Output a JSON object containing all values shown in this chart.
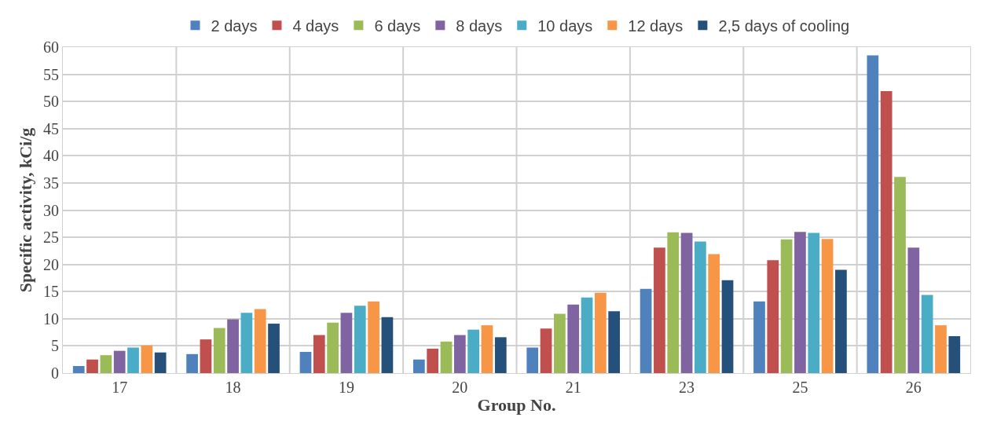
{
  "chart_data": {
    "type": "bar",
    "xlabel": "Group No.",
    "ylabel": "Specific activity, kCi/g",
    "categories": [
      "17",
      "18",
      "19",
      "20",
      "21",
      "23",
      "25",
      "26"
    ],
    "series": [
      {
        "name": "2 days",
        "color": "#4f81bd",
        "values": [
          1.3,
          3.5,
          3.9,
          2.5,
          4.7,
          15.5,
          13.2,
          58.5
        ]
      },
      {
        "name": "4 days",
        "color": "#c0504d",
        "values": [
          2.5,
          6.2,
          7.0,
          4.5,
          8.2,
          23.1,
          20.8,
          51.9
        ]
      },
      {
        "name": "6 days",
        "color": "#9bbb59",
        "values": [
          3.3,
          8.3,
          9.3,
          5.8,
          10.9,
          25.9,
          24.6,
          36.1
        ]
      },
      {
        "name": "8 days",
        "color": "#8064a2",
        "values": [
          4.1,
          9.9,
          11.1,
          7.0,
          12.6,
          25.8,
          26.0,
          23.1
        ]
      },
      {
        "name": "10 days",
        "color": "#4bacc6",
        "values": [
          4.7,
          11.1,
          12.4,
          8.0,
          13.9,
          24.2,
          25.8,
          14.4
        ]
      },
      {
        "name": "12 days",
        "color": "#f79646",
        "values": [
          5.1,
          11.8,
          13.2,
          8.8,
          14.8,
          21.9,
          24.7,
          8.8
        ]
      },
      {
        "name": "2,5 days of cooling",
        "color": "#24507a",
        "values": [
          3.8,
          9.1,
          10.3,
          6.6,
          11.4,
          17.1,
          19.0,
          6.8
        ]
      }
    ],
    "ylim": [
      0,
      60
    ],
    "yticks": [
      0,
      5,
      10,
      15,
      20,
      25,
      30,
      35,
      40,
      45,
      50,
      55,
      60
    ],
    "grid": true,
    "legend": "top"
  }
}
